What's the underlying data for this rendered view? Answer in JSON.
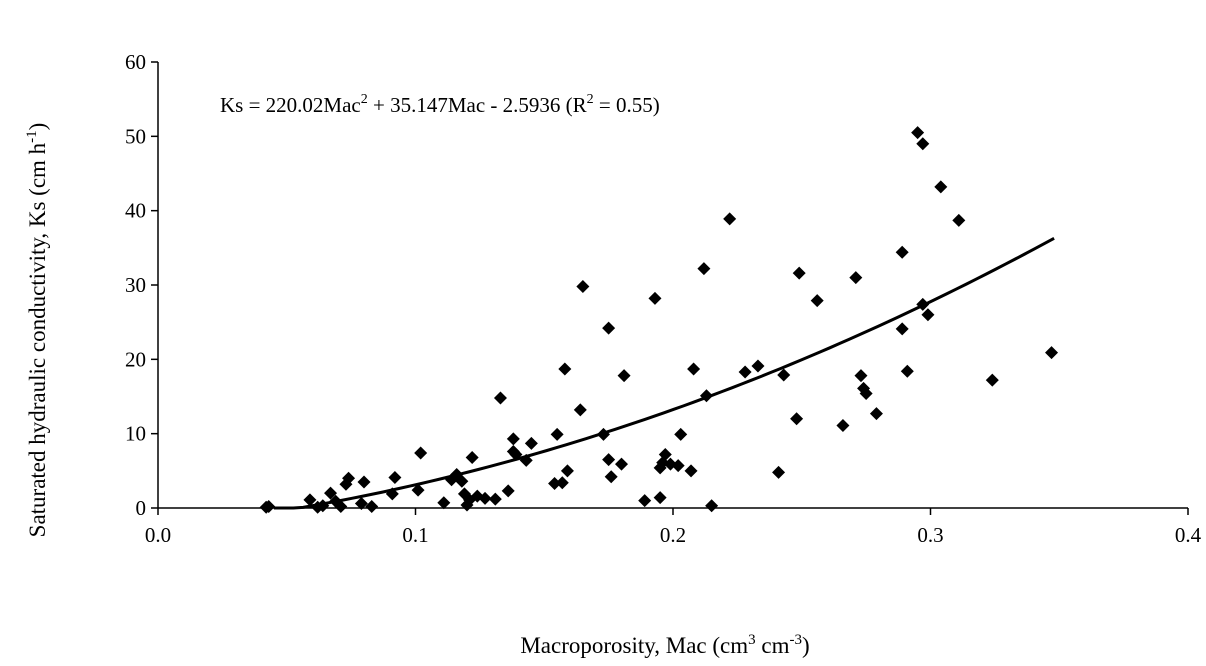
{
  "chart_data": {
    "type": "scatter",
    "x_label_text": "Macroporosity, Mac (cm",
    "x_label_sup1": "3",
    "x_label_mid": " cm",
    "x_label_sup2": "-3",
    "x_label_end": ")",
    "y_label_text": "Saturated hydraulic conductivity, Ks (cm h",
    "y_label_sup": "-1",
    "y_label_end": ")",
    "xlim": [
      0.0,
      0.4
    ],
    "ylim": [
      0,
      60
    ],
    "x_ticks": [
      0.0,
      0.1,
      0.2,
      0.3,
      0.4
    ],
    "x_tick_labels": [
      "0.0",
      "0.1",
      "0.2",
      "0.3",
      "0.4"
    ],
    "y_ticks": [
      0,
      10,
      20,
      30,
      40,
      50,
      60
    ],
    "y_tick_labels": [
      "0",
      "10",
      "20",
      "30",
      "40",
      "50",
      "60"
    ],
    "grid": false,
    "equation": {
      "part1": "Ks = 220.02Mac",
      "sup1": "2",
      "part2": " + 35.147Mac - 2.5936 (R",
      "sup2": "2",
      "part3": " = 0.55)"
    },
    "trendline": {
      "a": 220.02,
      "b": 35.147,
      "c": -2.5936,
      "x_range": [
        0.045,
        0.348
      ]
    },
    "marker_color": "#000000",
    "points": [
      [
        0.042,
        0.1
      ],
      [
        0.043,
        0.2
      ],
      [
        0.059,
        1.1
      ],
      [
        0.062,
        0.1
      ],
      [
        0.064,
        0.3
      ],
      [
        0.067,
        2.0
      ],
      [
        0.069,
        0.9
      ],
      [
        0.071,
        0.2
      ],
      [
        0.073,
        3.2
      ],
      [
        0.074,
        4.0
      ],
      [
        0.079,
        0.6
      ],
      [
        0.08,
        3.5
      ],
      [
        0.083,
        0.2
      ],
      [
        0.091,
        1.9
      ],
      [
        0.092,
        4.1
      ],
      [
        0.101,
        2.4
      ],
      [
        0.102,
        7.4
      ],
      [
        0.111,
        0.7
      ],
      [
        0.114,
        3.8
      ],
      [
        0.116,
        4.5
      ],
      [
        0.118,
        3.6
      ],
      [
        0.119,
        1.9
      ],
      [
        0.12,
        0.4
      ],
      [
        0.121,
        1.1
      ],
      [
        0.122,
        6.8
      ],
      [
        0.124,
        1.6
      ],
      [
        0.127,
        1.3
      ],
      [
        0.131,
        1.2
      ],
      [
        0.133,
        14.8
      ],
      [
        0.136,
        2.3
      ],
      [
        0.138,
        9.3
      ],
      [
        0.138,
        7.6
      ],
      [
        0.139,
        7.2
      ],
      [
        0.143,
        6.4
      ],
      [
        0.145,
        8.7
      ],
      [
        0.154,
        3.3
      ],
      [
        0.155,
        9.9
      ],
      [
        0.157,
        3.4
      ],
      [
        0.158,
        18.7
      ],
      [
        0.159,
        5.0
      ],
      [
        0.164,
        13.2
      ],
      [
        0.165,
        29.8
      ],
      [
        0.173,
        9.9
      ],
      [
        0.175,
        24.2
      ],
      [
        0.175,
        6.5
      ],
      [
        0.176,
        4.2
      ],
      [
        0.18,
        5.9
      ],
      [
        0.181,
        17.8
      ],
      [
        0.189,
        1.0
      ],
      [
        0.193,
        28.2
      ],
      [
        0.195,
        1.4
      ],
      [
        0.195,
        5.4
      ],
      [
        0.196,
        6.1
      ],
      [
        0.197,
        7.2
      ],
      [
        0.199,
        5.9
      ],
      [
        0.202,
        5.7
      ],
      [
        0.203,
        9.9
      ],
      [
        0.207,
        5.0
      ],
      [
        0.208,
        18.7
      ],
      [
        0.212,
        32.2
      ],
      [
        0.213,
        15.1
      ],
      [
        0.215,
        0.3
      ],
      [
        0.222,
        38.9
      ],
      [
        0.228,
        18.3
      ],
      [
        0.233,
        19.1
      ],
      [
        0.241,
        4.8
      ],
      [
        0.243,
        17.9
      ],
      [
        0.248,
        12.0
      ],
      [
        0.249,
        31.6
      ],
      [
        0.256,
        27.9
      ],
      [
        0.266,
        11.1
      ],
      [
        0.271,
        31.0
      ],
      [
        0.273,
        17.8
      ],
      [
        0.274,
        16.1
      ],
      [
        0.275,
        15.4
      ],
      [
        0.279,
        12.7
      ],
      [
        0.289,
        34.4
      ],
      [
        0.289,
        24.1
      ],
      [
        0.291,
        18.4
      ],
      [
        0.295,
        50.5
      ],
      [
        0.297,
        49.0
      ],
      [
        0.297,
        27.4
      ],
      [
        0.299,
        26.0
      ],
      [
        0.304,
        43.2
      ],
      [
        0.311,
        38.7
      ],
      [
        0.324,
        17.2
      ],
      [
        0.347,
        20.9
      ]
    ]
  }
}
